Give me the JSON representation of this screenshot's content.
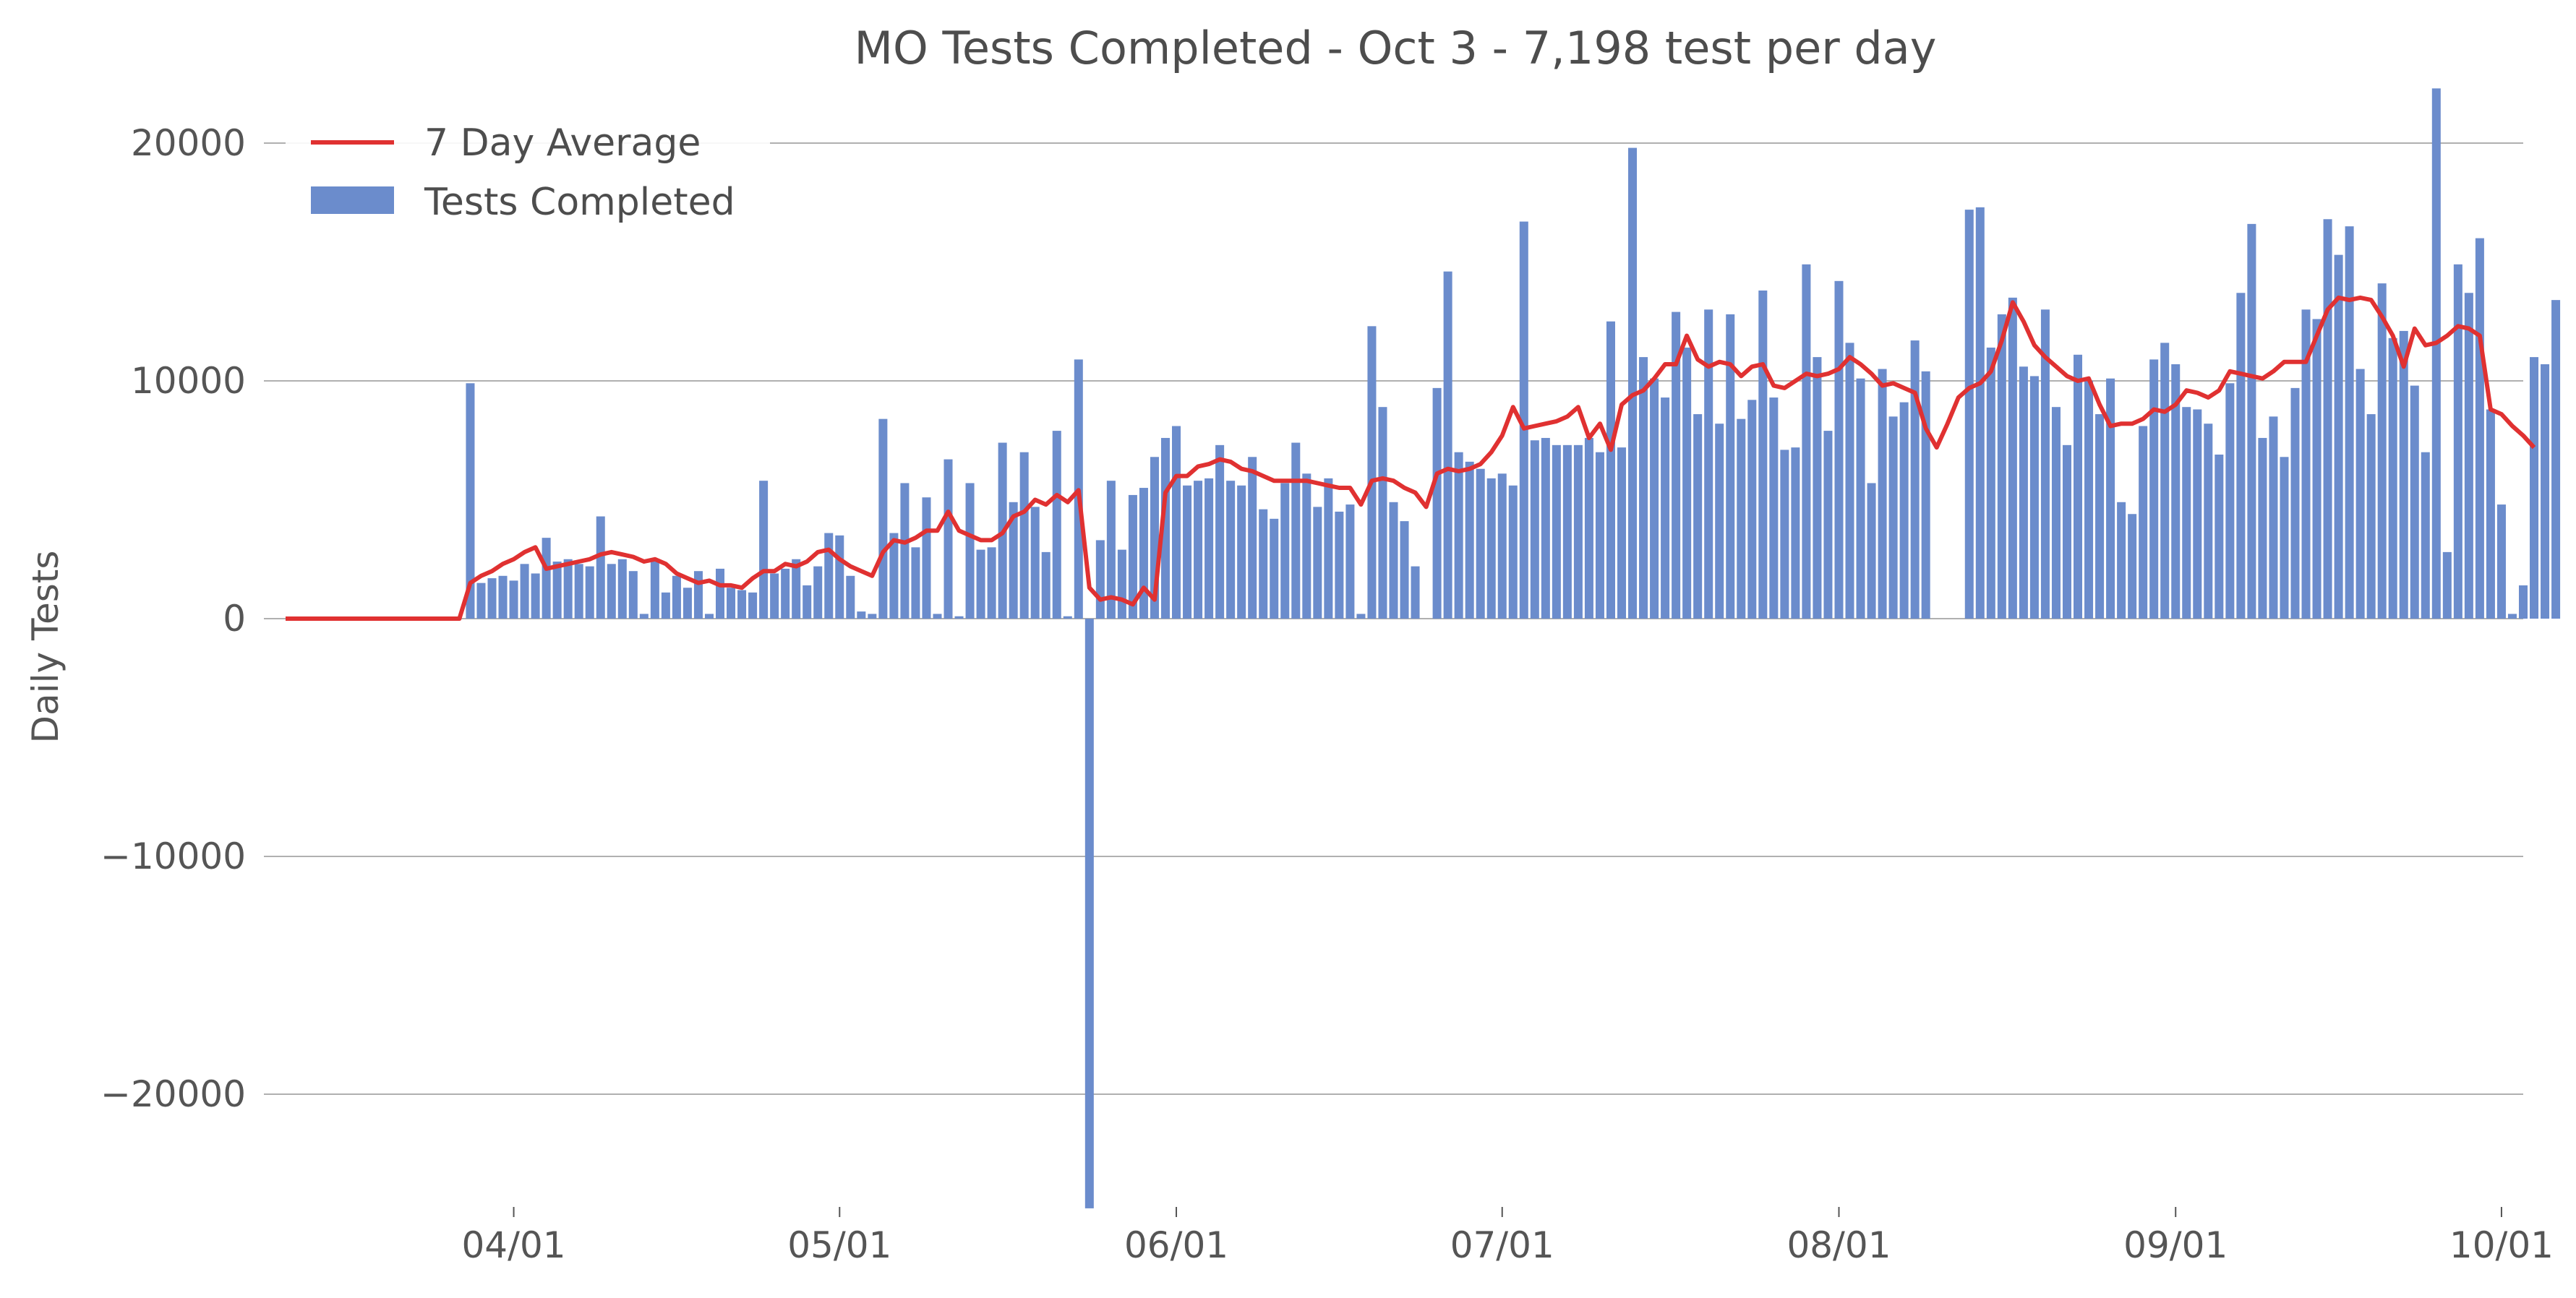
{
  "chart_data": {
    "type": "bar",
    "title": "MO Tests Completed - Oct 3 - 7,198 test per day",
    "ylabel": "Daily Tests",
    "xlabel": "",
    "ylim": [
      -24800,
      22500
    ],
    "xlim": [
      "2020-03-09",
      "2020-10-03"
    ],
    "y_ticks": [
      20000,
      10000,
      0,
      -10000,
      -20000
    ],
    "y_tick_labels": [
      "20000",
      "10000",
      "0",
      "−10000",
      "−20000"
    ],
    "x_ticks": [
      "2020-04-01",
      "2020-05-01",
      "2020-06-01",
      "2020-07-01",
      "2020-08-01",
      "2020-09-01",
      "2020-10-01"
    ],
    "x_tick_labels": [
      "04/01",
      "05/01",
      "06/01",
      "07/01",
      "08/01",
      "09/01",
      "10/01"
    ],
    "grid": "horizontal",
    "legend_position": "top-left",
    "colors": {
      "bars": "#6b8ccc",
      "line": "#e03131",
      "grid": "#b0b0b0",
      "text": "#555555"
    },
    "start_date": "2020-03-11",
    "series": [
      {
        "name": "Tests Completed",
        "type": "bar",
        "values": [
          0,
          0,
          0,
          0,
          0,
          0,
          0,
          0,
          0,
          0,
          0,
          0,
          0,
          0,
          0,
          0,
          0,
          9900,
          1500,
          1700,
          1800,
          1600,
          2300,
          1900,
          3400,
          2400,
          2500,
          2300,
          2200,
          4300,
          2300,
          2500,
          2000,
          200,
          2400,
          1100,
          1800,
          1300,
          2000,
          200,
          2100,
          1300,
          1200,
          1100,
          5800,
          1900,
          2100,
          2500,
          1400,
          2200,
          3600,
          3500,
          1800,
          300,
          200,
          8400,
          3600,
          5700,
          3000,
          5100,
          200,
          6700,
          100,
          5700,
          2900,
          3000,
          7400,
          4900,
          7000,
          4700,
          2800,
          7900,
          100,
          10900,
          -24800,
          3300,
          5800,
          2900,
          5200,
          5500,
          6800,
          7600,
          8100,
          5600,
          5800,
          5900,
          7300,
          5800,
          5600,
          6800,
          4600,
          4200,
          5700,
          7400,
          6100,
          4700,
          5900,
          4500,
          4800,
          200,
          12300,
          8900,
          4900,
          4100,
          2200,
          0,
          9700,
          14600,
          7000,
          6600,
          6300,
          5900,
          6100,
          5600,
          16700,
          7500,
          7600,
          7300,
          7300,
          7300,
          7600,
          7000,
          12500,
          7200,
          19800,
          11000,
          10100,
          9300,
          12900,
          11400,
          8600,
          13000,
          8200,
          12800,
          8400,
          9200,
          13800,
          9300,
          7100,
          7200,
          14900,
          11000,
          7900,
          14200,
          11600,
          10100,
          5700,
          10500,
          8500,
          9100,
          11700,
          10400,
          0,
          0,
          0,
          17200,
          17300,
          11400,
          12800,
          13500,
          10600,
          10200,
          13000,
          8900,
          7300,
          11100,
          10000,
          8600,
          10100,
          4900,
          4400,
          8100,
          10900,
          11600,
          10700,
          8900,
          8800,
          8200,
          6900,
          9900,
          13700,
          16600,
          7600,
          8500,
          6800,
          9700,
          13000,
          12600,
          16800,
          15300,
          16500,
          10500,
          8600,
          14100,
          11800,
          12100,
          9800,
          7000,
          22300,
          2800,
          14900,
          13700,
          16000,
          8800,
          4800,
          200,
          1400,
          11000,
          10700,
          13400
        ]
      },
      {
        "name": "7 Day Average",
        "type": "line",
        "values": [
          0,
          0,
          0,
          0,
          0,
          0,
          0,
          0,
          0,
          0,
          0,
          0,
          0,
          0,
          0,
          0,
          0,
          1500,
          1800,
          2000,
          2300,
          2500,
          2800,
          3000,
          2100,
          2200,
          2300,
          2400,
          2500,
          2700,
          2800,
          2700,
          2600,
          2400,
          2500,
          2300,
          1900,
          1700,
          1500,
          1600,
          1400,
          1400,
          1300,
          1700,
          2000,
          2000,
          2300,
          2200,
          2400,
          2800,
          2900,
          2500,
          2200,
          2000,
          1800,
          2800,
          3300,
          3200,
          3400,
          3700,
          3700,
          4500,
          3700,
          3500,
          3300,
          3300,
          3600,
          4300,
          4500,
          5000,
          4800,
          5200,
          4900,
          5400,
          1300,
          800,
          900,
          800,
          600,
          1300,
          800,
          5300,
          6000,
          6000,
          6400,
          6500,
          6700,
          6600,
          6300,
          6200,
          6000,
          5800,
          5800,
          5800,
          5800,
          5700,
          5600,
          5500,
          5500,
          4800,
          5800,
          5900,
          5800,
          5500,
          5300,
          4700,
          6100,
          6300,
          6200,
          6300,
          6500,
          7000,
          7700,
          8900,
          8000,
          8100,
          8200,
          8300,
          8500,
          8900,
          7600,
          8200,
          7100,
          9000,
          9400,
          9600,
          10100,
          10700,
          10700,
          11900,
          10900,
          10600,
          10800,
          10700,
          10200,
          10600,
          10700,
          9800,
          9700,
          10000,
          10300,
          10200,
          10300,
          10500,
          11000,
          10700,
          10300,
          9800,
          9900,
          9700,
          9500,
          8000,
          7200,
          8200,
          9300,
          9700,
          9900,
          10400,
          11700,
          13300,
          12500,
          11500,
          11000,
          10600,
          10200,
          10000,
          10100,
          9000,
          8100,
          8200,
          8200,
          8400,
          8800,
          8700,
          9000,
          9600,
          9500,
          9300,
          9600,
          10400,
          10300,
          10200,
          10100,
          10400,
          10800,
          10800,
          10800,
          11900,
          13000,
          13500,
          13400,
          13500,
          13400,
          12700,
          11900,
          10600,
          12200,
          11500,
          11600,
          11900,
          12300,
          12200,
          11900,
          8800,
          8600,
          8100,
          7700,
          7198
        ]
      }
    ]
  }
}
